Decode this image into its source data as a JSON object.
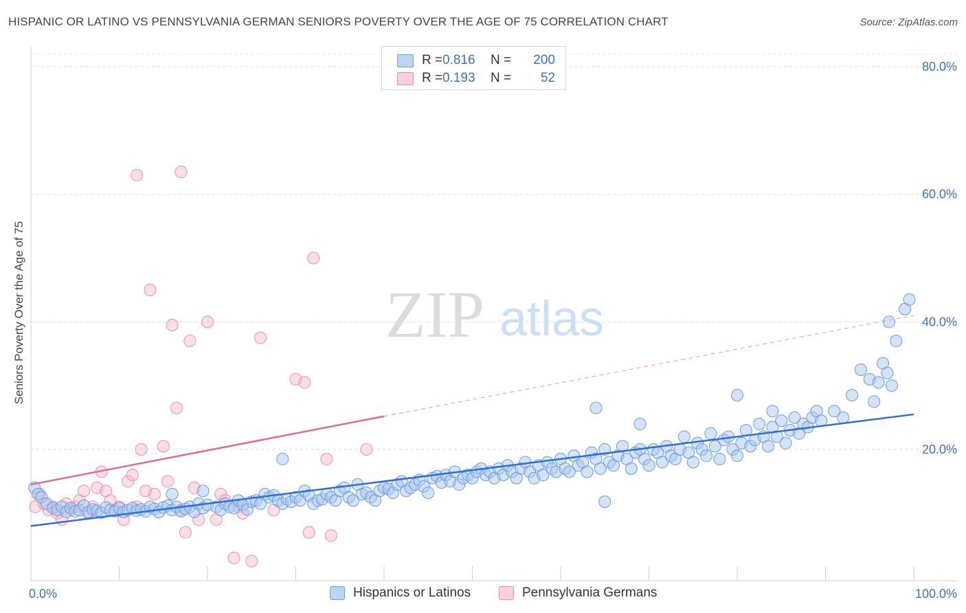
{
  "title": "HISPANIC OR LATINO VS PENNSYLVANIA GERMAN SENIORS POVERTY OVER THE AGE OF 75 CORRELATION CHART",
  "source": "Source: ZipAtlas.com",
  "watermark": {
    "zip": "ZIP",
    "atlas": "atlas"
  },
  "legend": {
    "rows": [
      {
        "r_label": "R =",
        "r_value": "0.816",
        "n_label": "N =",
        "n_value": "200",
        "color": "#a9c8f0"
      },
      {
        "r_label": "R =",
        "r_value": "0.193",
        "n_label": "N =",
        "n_value": "52",
        "color": "#f7b9cc"
      }
    ]
  },
  "bottom_legend": [
    "Hispanics or Latinos",
    "Pennsylvania Germans"
  ],
  "chart_data": {
    "type": "scatter",
    "xlabel": "",
    "ylabel": "Seniors Poverty Over the Age of 75",
    "xlim": [
      0,
      100
    ],
    "ylim": [
      0,
      85
    ],
    "x_tick_labels": [
      "0.0%",
      "100.0%"
    ],
    "y_ticks": [
      20,
      40,
      60,
      80
    ],
    "y_tick_labels": [
      "20.0%",
      "40.0%",
      "60.0%",
      "80.0%"
    ],
    "grid": true,
    "colors": {
      "blue_fill": "#a9c8f0",
      "blue_stroke": "#6b9be0",
      "blue_line": "#2f6fcf",
      "pink_fill": "#f7b9cc",
      "pink_stroke": "#ec8fac",
      "pink_line": "#e06b93"
    },
    "series": [
      {
        "name": "Hispanics or Latinos",
        "trend": {
          "x0": 0,
          "y0": 8,
          "x1": 100,
          "y1": 25.5
        },
        "points": [
          [
            0.4,
            14
          ],
          [
            0.8,
            13
          ],
          [
            1.2,
            12.5
          ],
          [
            1.8,
            11.5
          ],
          [
            2.5,
            10.8
          ],
          [
            3,
            10.5
          ],
          [
            3.5,
            11
          ],
          [
            4,
            10.2
          ],
          [
            4.5,
            10.8
          ],
          [
            5,
            10.3
          ],
          [
            5.5,
            10.5
          ],
          [
            6,
            11.2
          ],
          [
            6.5,
            10.2
          ],
          [
            7,
            10.6
          ],
          [
            7.5,
            10.4
          ],
          [
            8,
            10.1
          ],
          [
            8.5,
            10.9
          ],
          [
            9,
            10.5
          ],
          [
            9.5,
            10.3
          ],
          [
            10,
            10.8
          ],
          [
            10.5,
            10.2
          ],
          [
            11,
            10.5
          ],
          [
            11.5,
            10.8
          ],
          [
            12,
            10.4
          ],
          [
            12.5,
            10.6
          ],
          [
            13,
            10.3
          ],
          [
            13.5,
            11
          ],
          [
            14,
            10.7
          ],
          [
            14.5,
            10.2
          ],
          [
            15,
            10.9
          ],
          [
            15.5,
            11.2
          ],
          [
            16,
            10.5
          ],
          [
            16.5,
            11
          ],
          [
            17,
            10.3
          ],
          [
            17.5,
            10.7
          ],
          [
            18,
            11
          ],
          [
            18.5,
            10.2
          ],
          [
            19,
            11.5
          ],
          [
            19.5,
            10.8
          ],
          [
            20,
            11.3
          ],
          [
            16,
            13
          ],
          [
            19.5,
            13.5
          ],
          [
            21,
            11
          ],
          [
            21.5,
            10.5
          ],
          [
            22,
            11.5
          ],
          [
            22.5,
            11
          ],
          [
            23,
            10.8
          ],
          [
            23.5,
            12
          ],
          [
            24,
            11.3
          ],
          [
            24.5,
            10.6
          ],
          [
            25,
            11.8
          ],
          [
            25.5,
            12
          ],
          [
            26,
            11.5
          ],
          [
            26.5,
            13
          ],
          [
            27,
            12.5
          ],
          [
            27.5,
            12.8
          ],
          [
            28,
            12
          ],
          [
            28.5,
            11.5
          ],
          [
            29,
            12.2
          ],
          [
            29.5,
            11.8
          ],
          [
            30,
            12.5
          ],
          [
            30.5,
            12
          ],
          [
            31,
            13.5
          ],
          [
            31.5,
            12.8
          ],
          [
            32,
            11.5
          ],
          [
            32.5,
            12
          ],
          [
            33,
            12.2
          ],
          [
            33.5,
            13
          ],
          [
            34,
            12.5
          ],
          [
            34.5,
            12
          ],
          [
            35,
            13.5
          ],
          [
            35.5,
            14
          ],
          [
            36,
            12.5
          ],
          [
            36.5,
            12
          ],
          [
            37,
            14.5
          ],
          [
            37.5,
            13
          ],
          [
            38,
            13.2
          ],
          [
            38.5,
            12.5
          ],
          [
            39,
            12
          ],
          [
            39.5,
            13.5
          ],
          [
            40,
            14
          ],
          [
            40.5,
            13.8
          ],
          [
            41,
            13.2
          ],
          [
            41.5,
            14.5
          ],
          [
            42,
            15
          ],
          [
            42.5,
            13.5
          ],
          [
            43,
            14
          ],
          [
            43.5,
            14.5
          ],
          [
            44,
            15.2
          ],
          [
            44.5,
            14.2
          ],
          [
            45,
            13.2
          ],
          [
            45.5,
            15.5
          ],
          [
            46,
            15.8
          ],
          [
            46.5,
            14.8
          ],
          [
            47,
            16
          ],
          [
            47.5,
            15
          ],
          [
            48,
            16.5
          ],
          [
            48.5,
            14.5
          ],
          [
            49,
            15.5
          ],
          [
            49.5,
            16
          ],
          [
            50,
            15.5
          ],
          [
            50.5,
            16.5
          ],
          [
            51,
            17
          ],
          [
            51.5,
            16
          ],
          [
            52,
            16.5
          ],
          [
            52.5,
            15.5
          ],
          [
            53,
            17
          ],
          [
            53.5,
            16
          ],
          [
            54,
            17.5
          ],
          [
            54.5,
            16.5
          ],
          [
            55,
            15.5
          ],
          [
            55.5,
            17
          ],
          [
            56,
            18
          ],
          [
            56.5,
            16.5
          ],
          [
            57,
            15.5
          ],
          [
            57.5,
            17.5
          ],
          [
            58,
            16
          ],
          [
            58.5,
            18
          ],
          [
            59,
            17
          ],
          [
            59.5,
            16.5
          ],
          [
            60,
            18.5
          ],
          [
            60.5,
            17
          ],
          [
            61,
            16.5
          ],
          [
            61.5,
            19
          ],
          [
            62,
            17.5
          ],
          [
            62.5,
            18
          ],
          [
            63,
            16.5
          ],
          [
            63.5,
            19.5
          ],
          [
            64,
            18.5
          ],
          [
            64.5,
            17
          ],
          [
            65,
            20
          ],
          [
            65.5,
            18
          ],
          [
            66,
            17.5
          ],
          [
            66.5,
            19
          ],
          [
            67,
            20.5
          ],
          [
            67.5,
            18.5
          ],
          [
            68,
            17
          ],
          [
            68.5,
            19.5
          ],
          [
            69,
            20
          ],
          [
            69.5,
            18.5
          ],
          [
            70,
            17.5
          ],
          [
            70.5,
            20
          ],
          [
            71,
            19.5
          ],
          [
            71.5,
            18
          ],
          [
            72,
            20.5
          ],
          [
            72.5,
            19
          ],
          [
            73,
            18.5
          ],
          [
            73.5,
            20
          ],
          [
            74,
            22
          ],
          [
            74.5,
            19.5
          ],
          [
            75,
            18
          ],
          [
            75.5,
            21
          ],
          [
            76,
            20
          ],
          [
            76.5,
            19
          ],
          [
            77,
            22.5
          ],
          [
            77.5,
            20.5
          ],
          [
            78,
            18.5
          ],
          [
            78.5,
            21.5
          ],
          [
            79,
            22
          ],
          [
            79.5,
            20
          ],
          [
            80,
            19
          ],
          [
            80.5,
            21
          ],
          [
            81,
            23
          ],
          [
            81.5,
            20.5
          ],
          [
            82,
            21.5
          ],
          [
            82.5,
            24
          ],
          [
            83,
            22
          ],
          [
            83.5,
            20.5
          ],
          [
            84,
            23.5
          ],
          [
            84.5,
            22
          ],
          [
            85,
            24.5
          ],
          [
            85.5,
            21
          ],
          [
            86,
            23
          ],
          [
            86.5,
            25
          ],
          [
            87,
            22.5
          ],
          [
            87.5,
            24
          ],
          [
            88,
            23.5
          ],
          [
            88.5,
            25
          ],
          [
            89,
            26
          ],
          [
            89.5,
            24.5
          ],
          [
            64,
            26.5
          ],
          [
            69,
            24
          ],
          [
            80,
            28.5
          ],
          [
            84,
            26
          ],
          [
            65,
            11.8
          ],
          [
            28.5,
            18.5
          ],
          [
            93,
            28.5
          ],
          [
            94,
            32.5
          ],
          [
            95,
            31
          ],
          [
            96,
            30.5
          ],
          [
            96.5,
            33.5
          ],
          [
            97,
            32
          ],
          [
            97.5,
            30
          ],
          [
            98,
            37
          ],
          [
            99,
            42
          ],
          [
            99.5,
            43.5
          ],
          [
            97.2,
            40
          ],
          [
            95.5,
            27.5
          ],
          [
            92,
            25
          ],
          [
            91,
            26
          ]
        ]
      },
      {
        "name": "Pennsylvania Germans",
        "trend": {
          "x0": 0,
          "y0": 14.5,
          "x1": 40,
          "y1": 25.2,
          "dash_x1": 100,
          "dash_y1": 41
        },
        "points": [
          [
            0.5,
            11
          ],
          [
            1,
            13
          ],
          [
            1.5,
            11.5
          ],
          [
            2,
            10.5
          ],
          [
            2.5,
            11
          ],
          [
            3,
            10
          ],
          [
            3.5,
            9
          ],
          [
            4,
            11.5
          ],
          [
            4.5,
            10.5
          ],
          [
            5,
            11
          ],
          [
            5.5,
            12
          ],
          [
            6,
            13.5
          ],
          [
            6.5,
            10
          ],
          [
            7,
            11
          ],
          [
            7.5,
            14
          ],
          [
            8,
            16.5
          ],
          [
            8.5,
            13.5
          ],
          [
            9,
            12
          ],
          [
            9.5,
            10.5
          ],
          [
            10,
            11
          ],
          [
            10.5,
            9
          ],
          [
            11,
            15
          ],
          [
            11.5,
            16
          ],
          [
            12,
            11
          ],
          [
            12.5,
            20
          ],
          [
            13,
            13.5
          ],
          [
            13.5,
            45
          ],
          [
            14,
            13
          ],
          [
            15,
            20.5
          ],
          [
            15.5,
            15
          ],
          [
            16,
            39.5
          ],
          [
            16.5,
            26.5
          ],
          [
            17,
            10.5
          ],
          [
            17.5,
            7
          ],
          [
            18,
            37
          ],
          [
            18.5,
            14
          ],
          [
            19,
            9
          ],
          [
            20,
            40
          ],
          [
            21,
            9
          ],
          [
            21.5,
            13
          ],
          [
            22,
            12
          ],
          [
            23,
            3
          ],
          [
            23.5,
            11
          ],
          [
            24,
            10
          ],
          [
            25,
            2.5
          ],
          [
            26,
            37.5
          ],
          [
            27.5,
            10.5
          ],
          [
            30,
            31
          ],
          [
            31,
            30.5
          ],
          [
            31.5,
            7
          ],
          [
            32,
            50
          ],
          [
            33.5,
            18.5
          ],
          [
            34,
            6.5
          ],
          [
            38,
            20
          ],
          [
            12,
            63
          ],
          [
            17,
            63.5
          ]
        ]
      }
    ]
  }
}
